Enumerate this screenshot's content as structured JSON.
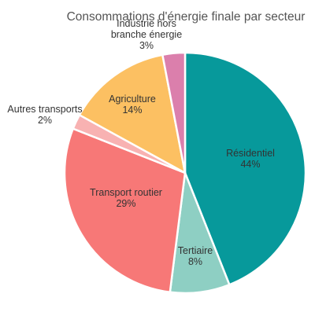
{
  "chart_data": {
    "type": "pie",
    "title": "Consommations d'énergie finale par secteur",
    "slices": [
      {
        "name": "Résidentiel",
        "value": 44,
        "label": "44%",
        "color": "#07999b"
      },
      {
        "name": "Tertiaire",
        "value": 8,
        "label": "8%",
        "color": "#8ecfc3"
      },
      {
        "name": "Transport routier",
        "value": 29,
        "label": "29%",
        "color": "#f77877"
      },
      {
        "name": "Autres transports",
        "value": 2,
        "label": "2%",
        "color": "#f8b2b2"
      },
      {
        "name": "Agriculture",
        "value": 14,
        "label": "14%",
        "color": "#fcc062"
      },
      {
        "name": "Industrie hors branche énergie",
        "value": 3,
        "label": "3%",
        "color": "#db7fac"
      }
    ],
    "start_angle_deg": 0,
    "direction": "clockwise",
    "legend": "none",
    "labels_display": [
      [
        "Résidentiel",
        "44%"
      ],
      [
        "Tertiaire",
        "8%"
      ],
      [
        "Transport routier",
        "29%"
      ],
      [
        "Autres transports",
        "2%"
      ],
      [
        "Agriculture",
        "14%"
      ],
      [
        "Industrie hors",
        "branche énergie",
        "3%"
      ]
    ]
  }
}
